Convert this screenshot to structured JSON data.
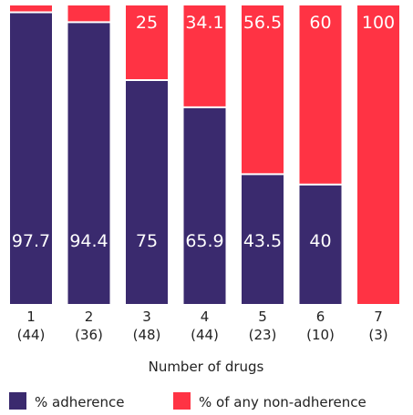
{
  "chart_data": {
    "type": "bar",
    "stacked": true,
    "orientation": "vertical",
    "categories": [
      "1",
      "2",
      "3",
      "4",
      "5",
      "6",
      "7"
    ],
    "category_counts": [
      "(44)",
      "(36)",
      "(48)",
      "(44)",
      "(23)",
      "(10)",
      "(3)"
    ],
    "series": [
      {
        "name": "% adherence",
        "color": "#3a2a6e",
        "values": [
          97.7,
          94.4,
          75,
          65.9,
          43.5,
          40,
          0
        ]
      },
      {
        "name": "% of any non-adherence",
        "color": "#ff3344",
        "values": [
          2.3,
          5.6,
          25,
          34.1,
          56.5,
          60,
          100
        ]
      }
    ],
    "data_labels": {
      "adherence": [
        "97.7",
        "94.4",
        "75",
        "65.9",
        "43.5",
        "40",
        ""
      ],
      "non_adherence": [
        "",
        "",
        "25",
        "34.1",
        "56.5",
        "60",
        "100"
      ]
    },
    "xlabel": "Number of drugs",
    "ylabel": "",
    "ylim": [
      0,
      100
    ],
    "grid": false,
    "legend_position": "bottom"
  }
}
